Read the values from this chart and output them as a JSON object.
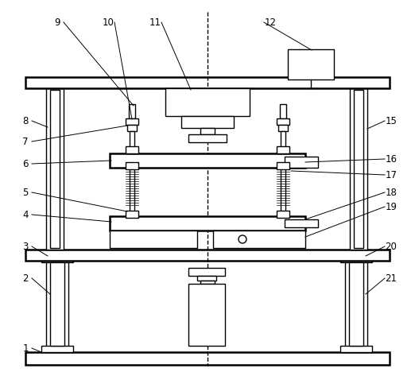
{
  "bg_color": "#ffffff",
  "line_color": "#000000",
  "fig_width": 5.22,
  "fig_height": 4.68,
  "dpi": 100
}
